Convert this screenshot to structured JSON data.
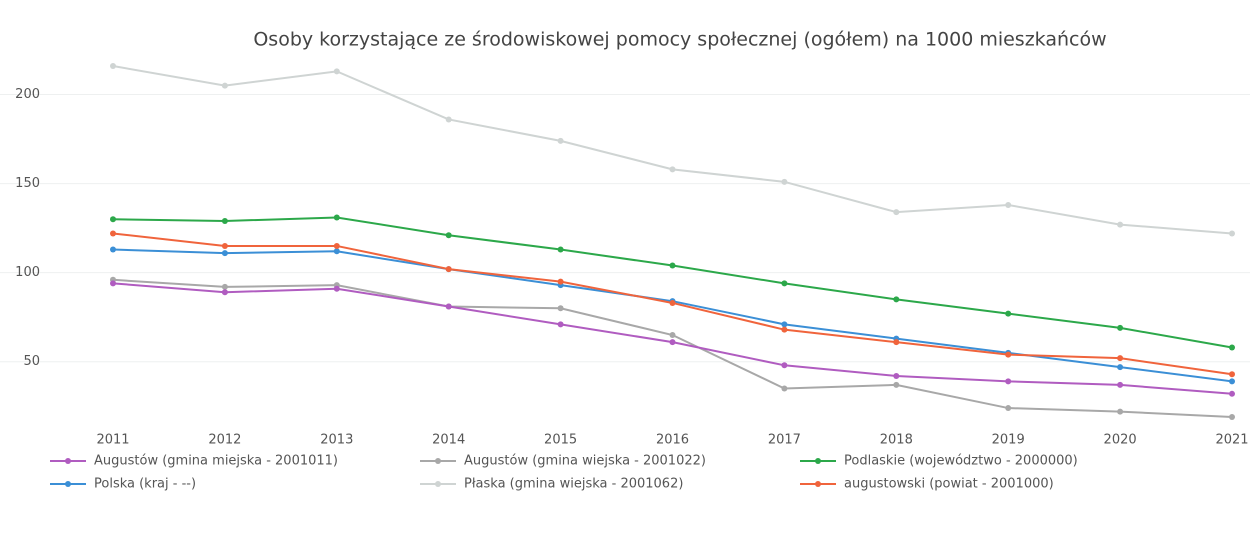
{
  "chart_data": {
    "type": "line",
    "title": "Osoby korzystające ze środowiskowej pomocy społecznej (ogółem) na 1000 mieszkańców",
    "categories": [
      "2011",
      "2012",
      "2013",
      "2014",
      "2015",
      "2016",
      "2017",
      "2018",
      "2019",
      "2020",
      "2021"
    ],
    "series": [
      {
        "name": "Augustów (gmina miejska - 2001011)",
        "color": "#b05cc0",
        "values": [
          94,
          89,
          91,
          81,
          71,
          61,
          48,
          42,
          39,
          37,
          32
        ]
      },
      {
        "name": "Polska (kraj - --)",
        "color": "#3b8fd6",
        "values": [
          113,
          111,
          112,
          102,
          93,
          84,
          71,
          63,
          55,
          47,
          39
        ]
      },
      {
        "name": "Augustów (gmina wiejska - 2001022)",
        "color": "#a8a8a8",
        "values": [
          96,
          92,
          93,
          81,
          80,
          65,
          35,
          37,
          24,
          22,
          19
        ]
      },
      {
        "name": "Płaska (gmina wiejska - 2001062)",
        "color": "#cfd4d3",
        "values": [
          216,
          205,
          213,
          186,
          174,
          158,
          151,
          134,
          138,
          127,
          122
        ]
      },
      {
        "name": "Podlaskie (województwo - 2000000)",
        "color": "#2ca84a",
        "values": [
          130,
          129,
          131,
          121,
          113,
          104,
          94,
          85,
          77,
          69,
          58
        ]
      },
      {
        "name": "augustowski (powiat - 2001000)",
        "color": "#f0643c",
        "values": [
          122,
          115,
          115,
          102,
          95,
          83,
          68,
          61,
          54,
          52,
          43
        ]
      }
    ],
    "ylim": [
      10,
      225
    ],
    "yticks": [
      50,
      100,
      150,
      200
    ],
    "grid": true
  }
}
